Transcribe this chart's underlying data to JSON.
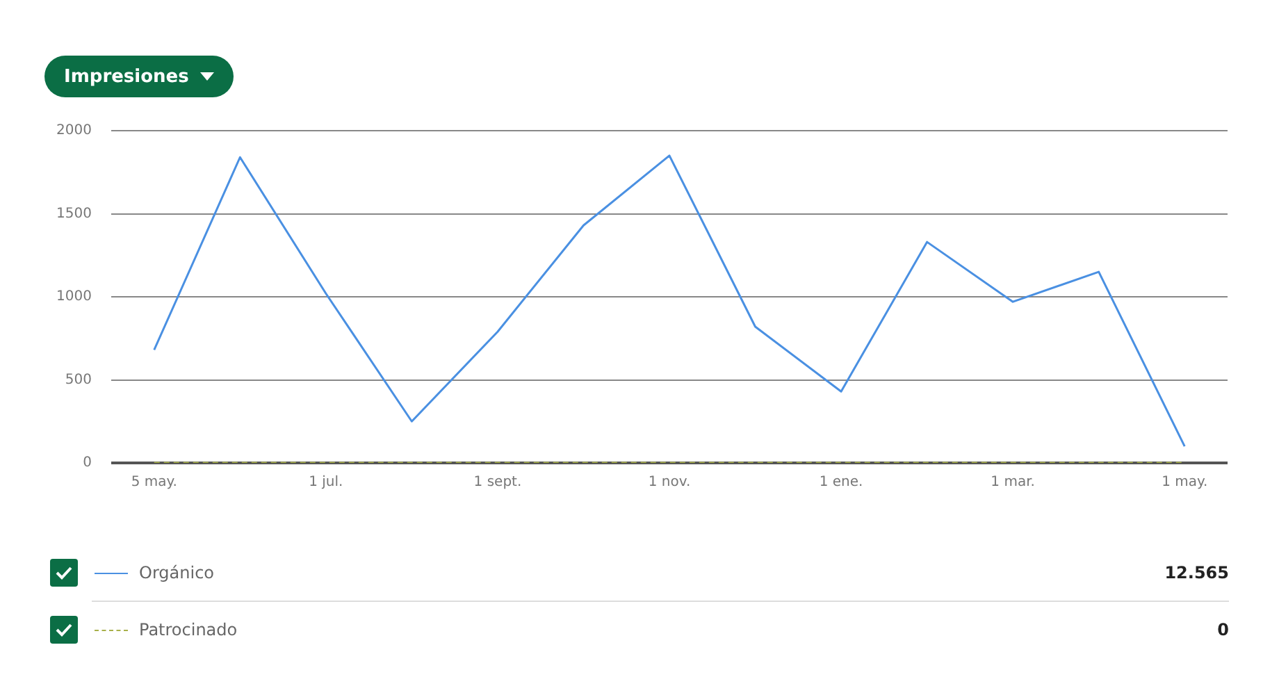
{
  "chart_data": {
    "type": "line",
    "title": "Impresiones",
    "categories": [
      "5 may.",
      null,
      "1 jul.",
      null,
      "1 sept.",
      null,
      "1 nov.",
      null,
      "1 ene.",
      null,
      "1 mar.",
      null,
      "1 may."
    ],
    "series": [
      {
        "name": "Orgánico",
        "color": "#4a90e2",
        "line_style": "solid",
        "values": [
          680,
          1840,
          1020,
          250,
          790,
          1430,
          1850,
          820,
          430,
          1330,
          970,
          1150,
          100
        ]
      },
      {
        "name": "Patrocinado",
        "color": "#a8b04a",
        "line_style": "dashed",
        "values": [
          0,
          0,
          0,
          0,
          0,
          0,
          0,
          0,
          0,
          0,
          0,
          0,
          0
        ]
      }
    ],
    "ylim": [
      0,
      2000
    ],
    "yticks": [
      0,
      500,
      1000,
      1500,
      2000
    ],
    "grid": "y",
    "legend": "bottom",
    "marker": "none",
    "annotations": [
      "12.565",
      "0"
    ]
  }
}
